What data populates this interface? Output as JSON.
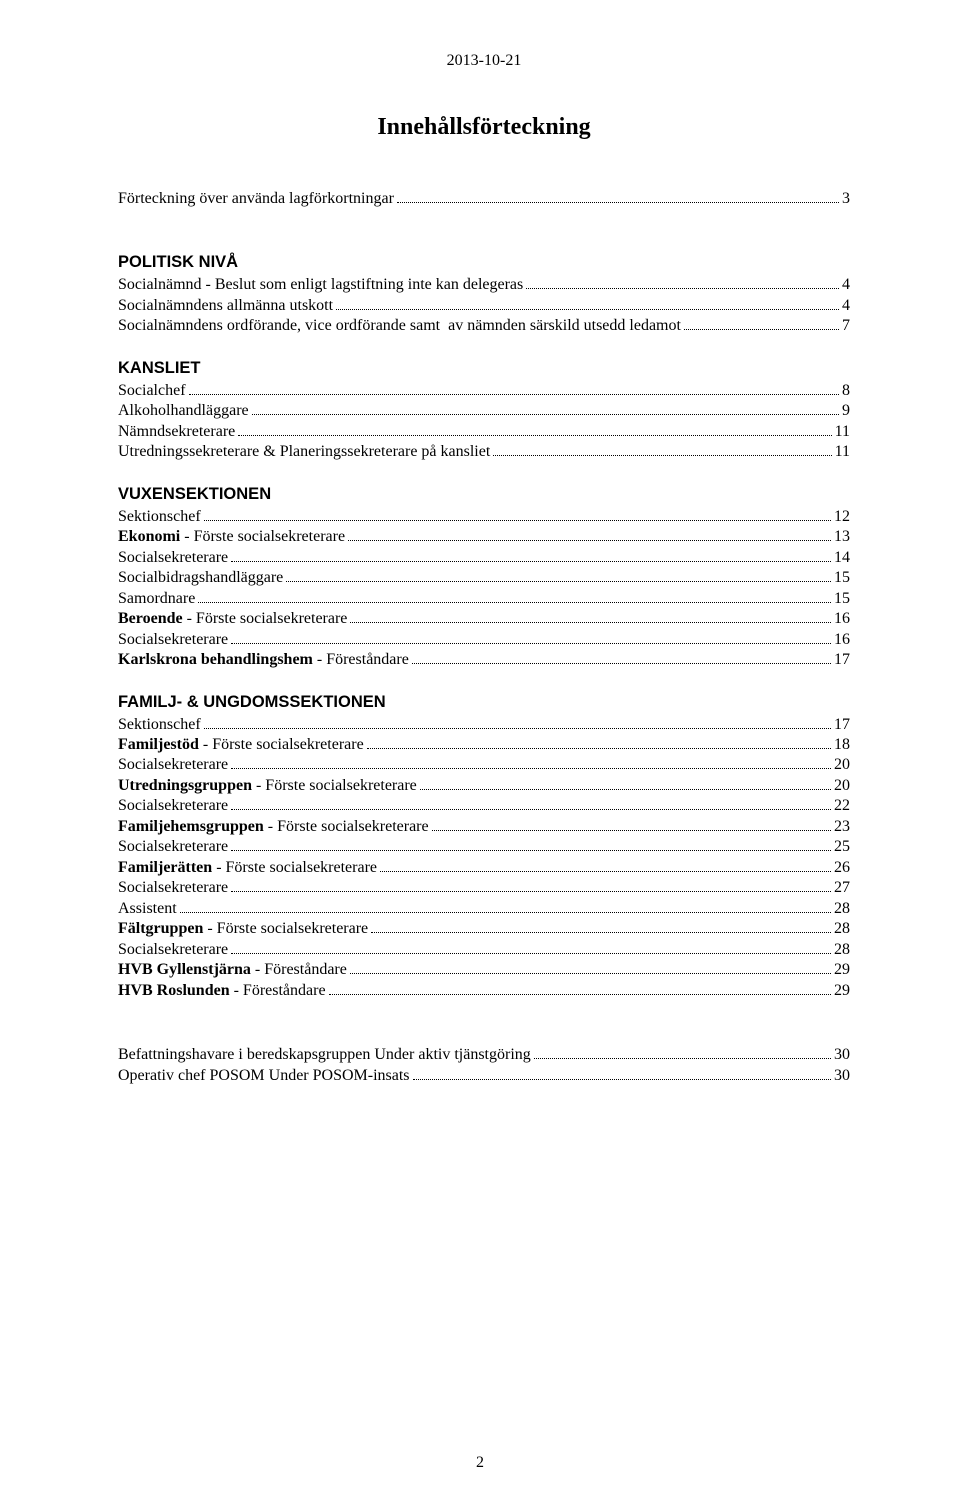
{
  "date": "2013-10-21",
  "title": "Innehållsförteckning",
  "page_number": "2",
  "sections": [
    {
      "heading": null,
      "entries": [
        {
          "label": "Förteckning över använda lagförkortningar",
          "page": "3",
          "bold": false
        }
      ]
    },
    {
      "heading": "POLITISK NIVÅ",
      "entries": [
        {
          "label": "Socialnämnd - Beslut som enligt lagstiftning inte kan delegeras",
          "page": "4",
          "bold": false
        },
        {
          "label": "Socialnämndens allmänna utskott",
          "page": "4",
          "bold": false
        },
        {
          "label": "Socialnämndens ordförande, vice ordförande samt  av nämnden särskild utsedd ledamot",
          "page": "7",
          "bold": false
        }
      ]
    },
    {
      "heading": "KANSLIET",
      "entries": [
        {
          "label": "Socialchef",
          "page": "8",
          "bold": false
        },
        {
          "label": "Alkoholhandläggare",
          "page": "9",
          "bold": false
        },
        {
          "label": "Nämndsekreterare",
          "page": "11",
          "bold": false
        },
        {
          "label": "Utredningssekreterare & Planeringssekreterare på kansliet",
          "page": "11",
          "bold": false
        }
      ]
    },
    {
      "heading": "VUXENSEKTIONEN",
      "entries": [
        {
          "label": "Sektionschef",
          "page": "12",
          "bold": false
        },
        {
          "prefix": "Ekonomi",
          "label": " - Förste socialsekreterare",
          "page": "13",
          "bold_prefix": true
        },
        {
          "label": "Socialsekreterare",
          "page": "14",
          "bold": false
        },
        {
          "label": "Socialbidragshandläggare",
          "page": "15",
          "bold": false
        },
        {
          "label": "Samordnare",
          "page": "15",
          "bold": false
        },
        {
          "prefix": "Beroende",
          "label": " - Förste socialsekreterare",
          "page": "16",
          "bold_prefix": true
        },
        {
          "label": "Socialsekreterare",
          "page": "16",
          "bold": false
        },
        {
          "prefix": "Karlskrona behandlingshem",
          "label": " - Föreståndare",
          "page": "17",
          "bold_prefix": true
        }
      ]
    },
    {
      "heading": "FAMILJ- & UNGDOMSSEKTIONEN",
      "entries": [
        {
          "label": "Sektionschef",
          "page": "17",
          "bold": false
        },
        {
          "prefix": "Familjestöd",
          "label": " - Förste socialsekreterare",
          "page": "18",
          "bold_prefix": true
        },
        {
          "label": "Socialsekreterare",
          "page": "20",
          "bold": false
        },
        {
          "prefix": "Utredningsgruppen",
          "label": " - Förste socialsekreterare",
          "page": "20",
          "bold_prefix": true
        },
        {
          "label": "Socialsekreterare",
          "page": "22",
          "bold": false
        },
        {
          "prefix": "Familjehemsgruppen",
          "label": " - Förste socialsekreterare",
          "page": "23",
          "bold_prefix": true
        },
        {
          "label": "Socialsekreterare",
          "page": "25",
          "bold": false
        },
        {
          "prefix": "Familjerätten",
          "label": " - Förste socialsekreterare",
          "page": "26",
          "bold_prefix": true
        },
        {
          "label": "Socialsekreterare",
          "page": "27",
          "bold": false
        },
        {
          "label": "Assistent",
          "page": "28",
          "bold": false
        },
        {
          "prefix": "Fältgruppen",
          "label": " - Förste socialsekreterare",
          "page": "28",
          "bold_prefix": true
        },
        {
          "label": "Socialsekreterare",
          "page": "28",
          "bold": false
        },
        {
          "prefix": "HVB Gyllenstjärna",
          "label": " - Föreståndare",
          "page": "29",
          "bold_prefix": true
        },
        {
          "prefix": "HVB Roslunden",
          "label": " - Föreståndare",
          "page": "29",
          "bold_prefix": true
        }
      ]
    },
    {
      "heading": null,
      "gap_before": true,
      "entries": [
        {
          "label": "Befattningshavare i beredskapsgruppen Under aktiv tjänstgöring",
          "page": "30",
          "bold": false
        },
        {
          "label": "Operativ chef POSOM Under POSOM-insats",
          "page": "30",
          "bold": false
        }
      ]
    }
  ]
}
